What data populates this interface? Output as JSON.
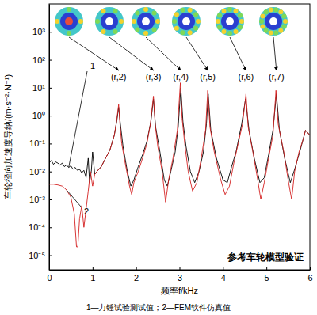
{
  "chart_data": {
    "type": "line",
    "x_label": "频率f/kHz",
    "y_label": "车轮径向加速度导纳/(m·s⁻²·N⁻¹)",
    "annotation": "参考车轮模型验证",
    "caption": "1—力锤试验测试值；2—FEM软件仿真值",
    "log": "y",
    "grid": false,
    "xlim": [
      0,
      6
    ],
    "xticks": [
      0,
      1,
      2,
      3,
      4,
      5,
      6
    ],
    "ylim": [
      3e-06,
      10000
    ],
    "yticks": [
      {
        "value": 1e-05,
        "label": "10⁻⁵"
      },
      {
        "value": 0.0001,
        "label": "10⁻⁴"
      },
      {
        "value": 0.001,
        "label": "10⁻³"
      },
      {
        "value": 0.01,
        "label": "10⁻²"
      },
      {
        "value": 0.1,
        "label": "10⁻¹"
      },
      {
        "value": 1,
        "label": "10⁰"
      },
      {
        "value": 10,
        "label": "10¹"
      },
      {
        "value": 100,
        "label": "10²"
      },
      {
        "value": 1000,
        "label": "10³"
      }
    ],
    "modes": [
      {
        "text": "(r,2)",
        "x": 1.6
      },
      {
        "text": "(r,3)",
        "x": 2.4
      },
      {
        "text": "(r,4)",
        "x": 3.03
      },
      {
        "text": "(r,5)",
        "x": 3.65
      },
      {
        "text": "(r,6)",
        "x": 4.53
      },
      {
        "text": "(r,7)",
        "x": 5.23
      }
    ],
    "series": [
      {
        "name": "1",
        "color": "#000000",
        "line_style": "solid",
        "x": [
          0,
          0.05,
          0.1,
          0.15,
          0.2,
          0.25,
          0.3,
          0.35,
          0.4,
          0.45,
          0.5,
          0.55,
          0.6,
          0.65,
          0.7,
          0.75,
          0.8,
          0.85,
          0.9,
          0.93,
          0.97,
          1.0,
          1.05,
          1.1,
          1.2,
          1.3,
          1.4,
          1.5,
          1.56,
          1.6,
          1.64,
          1.7,
          1.8,
          1.88,
          1.95,
          2.05,
          2.15,
          2.25,
          2.34,
          2.4,
          2.45,
          2.55,
          2.65,
          2.72,
          2.8,
          2.9,
          2.97,
          3.03,
          3.08,
          3.15,
          3.25,
          3.35,
          3.45,
          3.55,
          3.62,
          3.66,
          3.72,
          3.85,
          4.0,
          4.1,
          4.2,
          4.3,
          4.43,
          4.52,
          4.6,
          4.72,
          4.85,
          4.95,
          5.05,
          5.15,
          5.23,
          5.3,
          5.42,
          5.55,
          5.65,
          5.78,
          5.9,
          6.0
        ],
        "values": [
          0.02,
          0.025,
          0.018,
          0.022,
          0.02,
          0.017,
          0.02,
          0.015,
          0.017,
          0.014,
          0.016,
          0.012,
          0.014,
          0.011,
          0.012,
          0.009,
          0.011,
          0.006,
          0.03,
          0.004,
          0.01,
          0.05,
          0.008,
          0.01,
          0.015,
          0.03,
          0.06,
          0.2,
          0.7,
          2,
          0.5,
          0.08,
          0.01,
          0.003,
          0.005,
          0.015,
          0.04,
          0.12,
          0.6,
          4,
          0.4,
          0.05,
          0.005,
          0.003,
          0.01,
          0.05,
          0.4,
          10,
          0.6,
          0.08,
          0.01,
          0.004,
          0.01,
          0.05,
          0.5,
          6,
          0.3,
          0.03,
          0.005,
          0.004,
          0.015,
          0.05,
          0.5,
          4,
          0.3,
          0.03,
          0.004,
          0.006,
          0.04,
          0.3,
          6,
          0.3,
          0.03,
          0.004,
          0.012,
          0.06,
          0.3,
          0.2
        ]
      },
      {
        "name": "2",
        "color": "#d42020",
        "line_style": "solid",
        "x": [
          0,
          0.1,
          0.2,
          0.3,
          0.4,
          0.5,
          0.58,
          0.63,
          0.66,
          0.7,
          0.75,
          0.8,
          0.9,
          0.95,
          1.0,
          1.05,
          1.1,
          1.2,
          1.3,
          1.4,
          1.5,
          1.55,
          1.6,
          1.63,
          1.67,
          1.75,
          1.85,
          1.9,
          1.95,
          2.05,
          2.15,
          2.25,
          2.33,
          2.4,
          2.44,
          2.5,
          2.6,
          2.68,
          2.75,
          2.85,
          2.95,
          3.02,
          3.06,
          3.12,
          3.2,
          3.3,
          3.4,
          3.5,
          3.6,
          3.65,
          3.7,
          3.8,
          3.95,
          4.05,
          4.15,
          4.25,
          4.35,
          4.45,
          4.53,
          4.58,
          4.7,
          4.8,
          4.87,
          4.95,
          5.05,
          5.15,
          5.22,
          5.27,
          5.4,
          5.5,
          5.58,
          5.65,
          5.75,
          5.85,
          5.9,
          6.0
        ],
        "values": [
          0.0035,
          0.0035,
          0.0033,
          0.003,
          0.0022,
          0.0012,
          0.0003,
          2e-05,
          2e-05,
          0.0002,
          0.0006,
          0.0001,
          0.002,
          0.01,
          0.003,
          0.008,
          0.01,
          0.015,
          0.03,
          0.06,
          0.2,
          0.6,
          2.5,
          0.5,
          0.1,
          0.02,
          0.003,
          0.0015,
          0.004,
          0.01,
          0.03,
          0.1,
          0.5,
          5,
          0.5,
          0.08,
          0.01,
          0.0008,
          0.005,
          0.03,
          0.3,
          15,
          0.8,
          0.1,
          0.01,
          0.002,
          0.004,
          0.03,
          0.3,
          8,
          0.4,
          0.05,
          0.005,
          0.0015,
          0.003,
          0.02,
          0.1,
          0.5,
          6,
          0.4,
          0.04,
          0.005,
          0.001,
          0.004,
          0.03,
          0.2,
          8,
          0.5,
          0.05,
          0.005,
          0.001,
          0.01,
          0.05,
          0.15,
          0.3,
          0.2
        ]
      }
    ]
  }
}
